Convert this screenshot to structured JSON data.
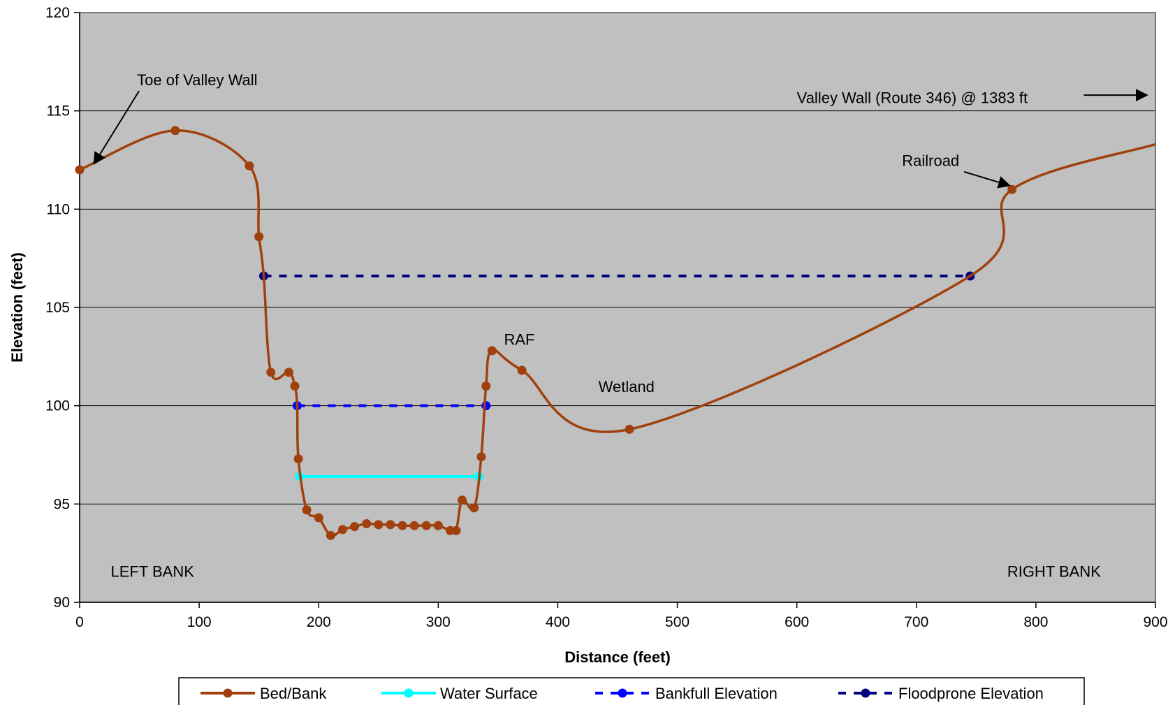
{
  "chart_data": {
    "type": "line",
    "title": "",
    "xlabel": "Distance (feet)",
    "ylabel": "Elevation (feet)",
    "xlim": [
      0,
      900
    ],
    "ylim": [
      90,
      120
    ],
    "xticks": [
      0,
      100,
      200,
      300,
      400,
      500,
      600,
      700,
      800,
      900
    ],
    "yticks": [
      90,
      95,
      100,
      105,
      110,
      115,
      120
    ],
    "grid": "horizontal",
    "legend_position": "bottom",
    "background": "#c0c0c0",
    "series": [
      {
        "name": "Bed/Bank",
        "color": "#a0410d",
        "style": "solid-markers",
        "x": [
          0,
          80,
          142,
          150,
          154,
          160,
          175,
          180,
          182,
          183,
          190,
          200,
          210,
          220,
          230,
          240,
          250,
          260,
          270,
          280,
          290,
          300,
          310,
          315,
          320,
          330,
          336,
          340,
          345,
          370,
          460,
          745,
          780,
          900
        ],
        "y": [
          112.0,
          114.0,
          112.2,
          108.6,
          106.6,
          101.7,
          101.7,
          101.0,
          100.0,
          97.3,
          94.7,
          94.3,
          93.4,
          93.7,
          93.85,
          94.0,
          93.95,
          93.95,
          93.9,
          93.9,
          93.9,
          93.9,
          93.65,
          93.65,
          95.2,
          94.8,
          97.4,
          101.0,
          102.8,
          101.8,
          98.8,
          106.6,
          111.0,
          113.3
        ],
        "markers": [
          true,
          true,
          true,
          true,
          false,
          true,
          true,
          true,
          false,
          true,
          true,
          true,
          true,
          true,
          true,
          true,
          true,
          true,
          true,
          true,
          true,
          true,
          true,
          true,
          true,
          true,
          true,
          true,
          true,
          true,
          true,
          false,
          true,
          false
        ]
      },
      {
        "name": "Water Surface",
        "color": "#00ffff",
        "style": "solid-markers",
        "x": [
          184,
          334
        ],
        "y": [
          96.4,
          96.4
        ]
      },
      {
        "name": "Bankfull Elevation",
        "color": "#0000ff",
        "style": "dashed-markers",
        "x": [
          182,
          340
        ],
        "y": [
          100.0,
          100.0
        ]
      },
      {
        "name": "Floodprone Elevation",
        "color": "#000080",
        "style": "dashed-markers",
        "x": [
          154,
          745
        ],
        "y": [
          106.6,
          106.6
        ]
      }
    ],
    "annotations": [
      {
        "text": "Toe of Valley Wall",
        "x": 48,
        "y": 116.3,
        "arrow_to": [
          12,
          112.3
        ]
      },
      {
        "text": "Valley Wall (Route 346) @ 1383 ft",
        "x": 600,
        "y": 115.4,
        "arrow_from": [
          840,
          115.8
        ],
        "arrow_to": [
          893,
          115.8
        ]
      },
      {
        "text": "Railroad",
        "x": 688,
        "y": 112.2,
        "arrow_from": [
          740,
          111.9
        ],
        "arrow_to": [
          778,
          111.2
        ]
      },
      {
        "text": "RAF",
        "x": 355,
        "y": 103.1
      },
      {
        "text": "Wetland",
        "x": 434,
        "y": 100.7
      },
      {
        "text": "LEFT BANK",
        "x": 26,
        "y": 91.3
      },
      {
        "text": "RIGHT BANK",
        "x": 776,
        "y": 91.3
      }
    ]
  }
}
